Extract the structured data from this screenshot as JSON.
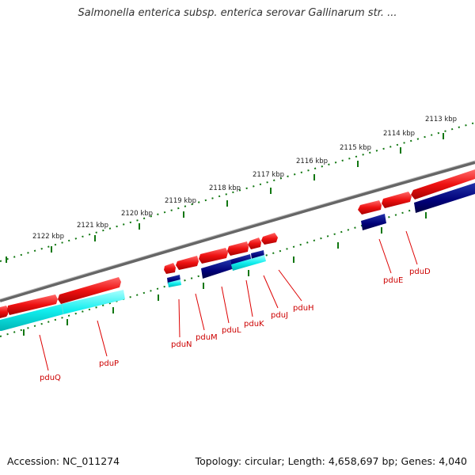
{
  "title": "Salmonella enterica subsp. enterica serovar Gallinarum str. ...",
  "footer": {
    "accession": "Accession: NC_011274",
    "topology": "Topology: circular; Length: 4,658,697 bp; Genes: 4,040"
  },
  "scale_labels": [
    "2113 kbp",
    "2114 kbp",
    "2115 kbp",
    "2116 kbp",
    "2117 kbp",
    "2118 kbp",
    "2119 kbp",
    "2120 kbp",
    "2121 kbp",
    "2122 kbp"
  ],
  "gene_labels": [
    "pduD",
    "pduE",
    "pduH",
    "pduJ",
    "pduK",
    "pduL",
    "pduM",
    "pduN",
    "pduP",
    "pduQ"
  ],
  "colors": {
    "forward_gene": "#ee1111",
    "reverse_gene": "#000088",
    "feature_cyan": "#11eeee",
    "backbone": "#777777",
    "tick": "#117711",
    "label_line": "#dd0000"
  }
}
